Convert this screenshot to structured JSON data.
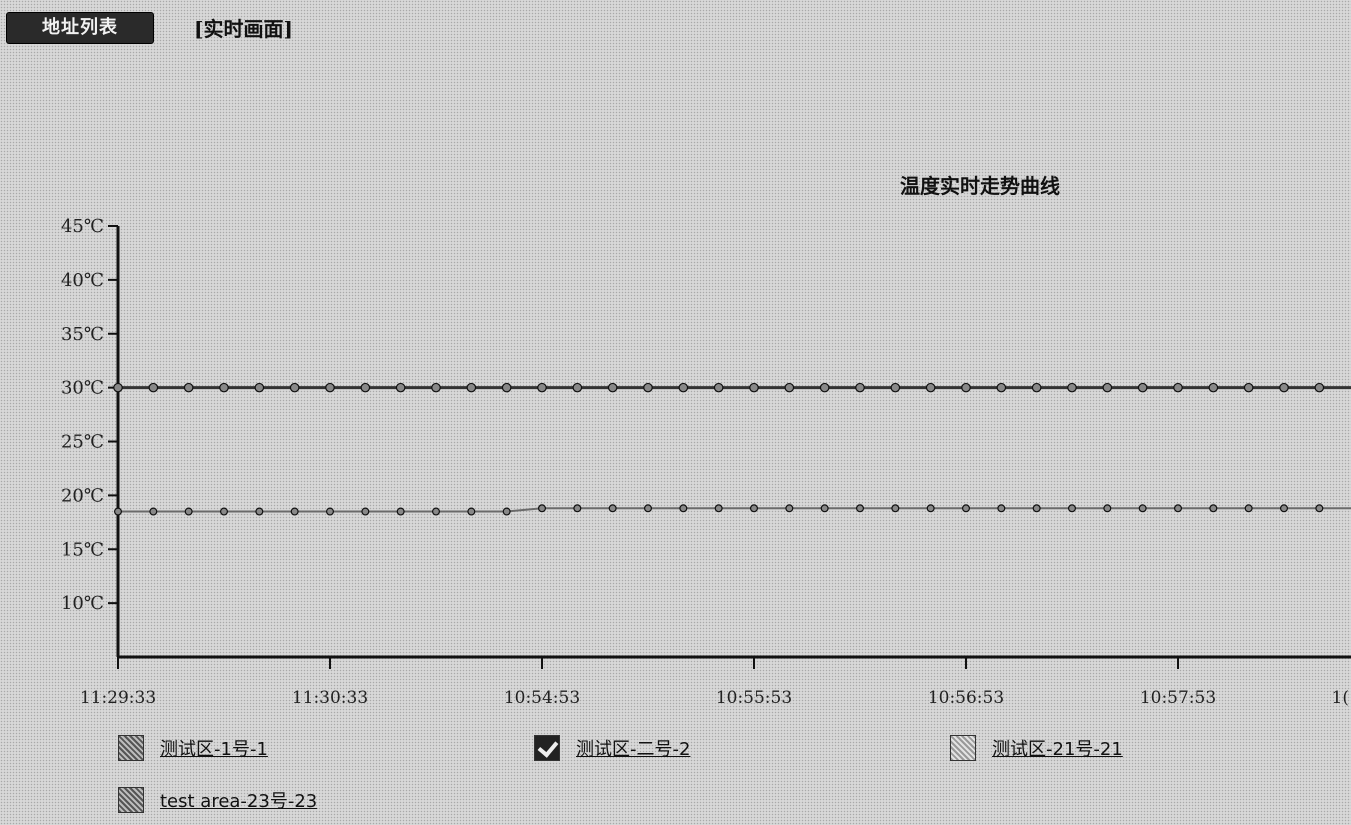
{
  "header": {
    "tab_list_label": "地址列表",
    "tab_realtime_label": "[实时画面]"
  },
  "chart_data": {
    "type": "line",
    "title": "温度实时走势曲线",
    "xlabel": "",
    "ylabel": "",
    "y_unit": "℃",
    "ylim": [
      5,
      45
    ],
    "y_ticks": [
      10,
      15,
      20,
      25,
      30,
      35,
      40,
      45
    ],
    "y_tick_labels": [
      "10℃",
      "15℃",
      "20℃",
      "25℃",
      "30℃",
      "35℃",
      "40℃",
      "45℃"
    ],
    "x_tick_labels": [
      "11:29:33",
      "11:30:33",
      "10:54:53",
      "10:55:53",
      "10:56:53",
      "10:57:53",
      "1("
    ],
    "points_per_tick": 6,
    "grid": false,
    "legend_position": "bottom",
    "series": [
      {
        "values": [
          30,
          30,
          30,
          30,
          30,
          30,
          30,
          30,
          30,
          30,
          30,
          30,
          30,
          30,
          30,
          30,
          30,
          30,
          30,
          30,
          30,
          30,
          30,
          30,
          30,
          30,
          30,
          30,
          30,
          30,
          30,
          30,
          30,
          30,
          30,
          30,
          30
        ]
      },
      {
        "values": [
          18.5,
          18.5,
          18.5,
          18.5,
          18.5,
          18.5,
          18.5,
          18.5,
          18.5,
          18.5,
          18.5,
          18.5,
          18.8,
          18.8,
          18.8,
          18.8,
          18.8,
          18.8,
          18.8,
          18.8,
          18.8,
          18.8,
          18.8,
          18.8,
          18.8,
          18.8,
          18.8,
          18.8,
          18.8,
          18.8,
          18.8,
          18.8,
          18.8,
          18.8,
          18.8,
          18.8,
          18.8
        ]
      }
    ]
  },
  "legend": {
    "items": [
      {
        "label": "测试区-1号-1",
        "swatch": "hatch"
      },
      {
        "label": "测试区-二号-2",
        "swatch": "checked"
      },
      {
        "label": "测试区-21号-21",
        "swatch": "light"
      },
      {
        "label": "test area-23号-23",
        "swatch": "hatch"
      }
    ]
  },
  "colors": {
    "background": "#d8d8d8",
    "axis": "#111111",
    "series_primary": "#333333",
    "series_secondary": "#6a6a6a"
  }
}
